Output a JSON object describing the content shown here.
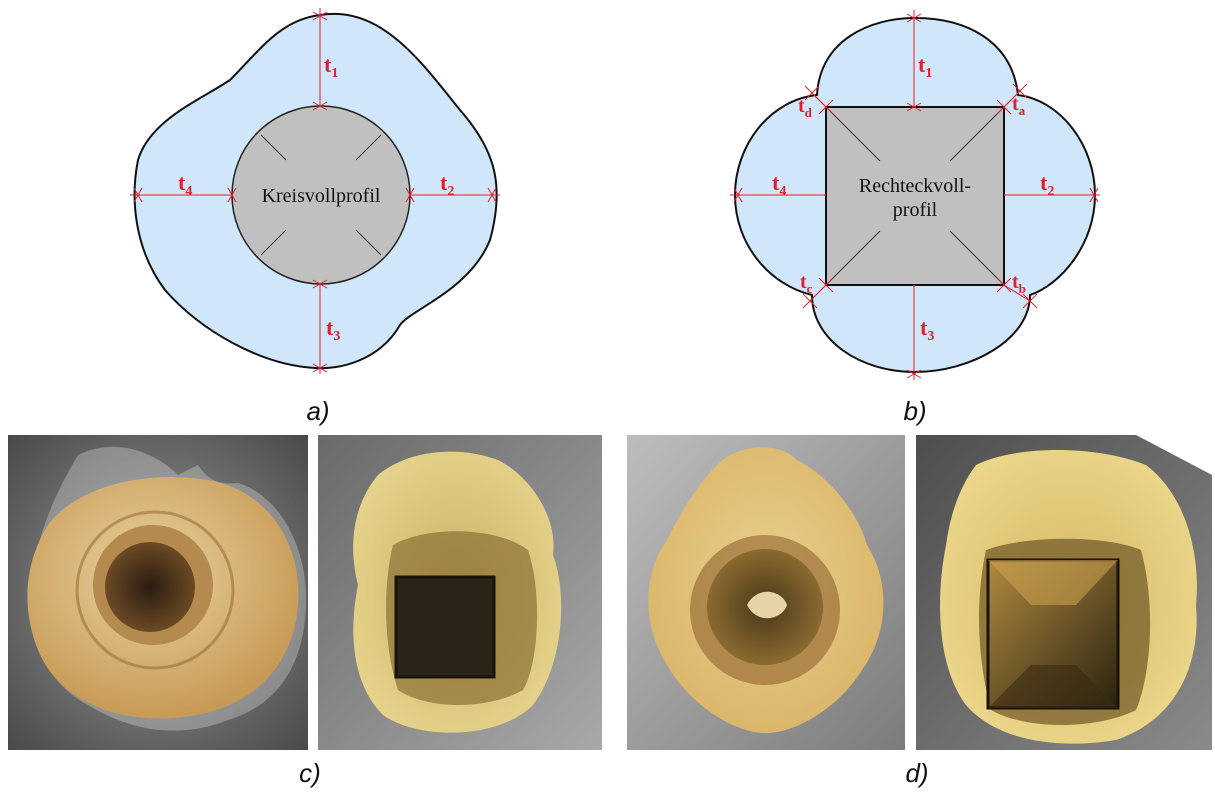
{
  "panel_a": {
    "profile_label": "Kreisvollprofil",
    "t_labels": {
      "t1": "t",
      "t1_sub": "1",
      "t2": "t",
      "t2_sub": "2",
      "t3": "t",
      "t3_sub": "3",
      "t4": "t",
      "t4_sub": "4"
    },
    "caption": "a)"
  },
  "panel_b": {
    "profile_label_line1": "Rechteckvoll-",
    "profile_label_line2": "profil",
    "t_labels": {
      "t1": "t",
      "t1_sub": "1",
      "t2": "t",
      "t2_sub": "2",
      "t3": "t",
      "t3_sub": "3",
      "t4": "t",
      "t4_sub": "4",
      "ta": "t",
      "ta_sub": "a",
      "tb": "t",
      "tb_sub": "b",
      "tc": "t",
      "tc_sub": "c",
      "td": "t",
      "td_sub": "d"
    },
    "caption": "b)"
  },
  "panel_c": {
    "caption": "c)"
  },
  "panel_d": {
    "caption": "d)"
  },
  "colors": {
    "coating_fill": "#cfe6fb",
    "steel_fill": "#c0c0c0",
    "measure_line": "#e0202a",
    "foam": "#e6c777"
  }
}
